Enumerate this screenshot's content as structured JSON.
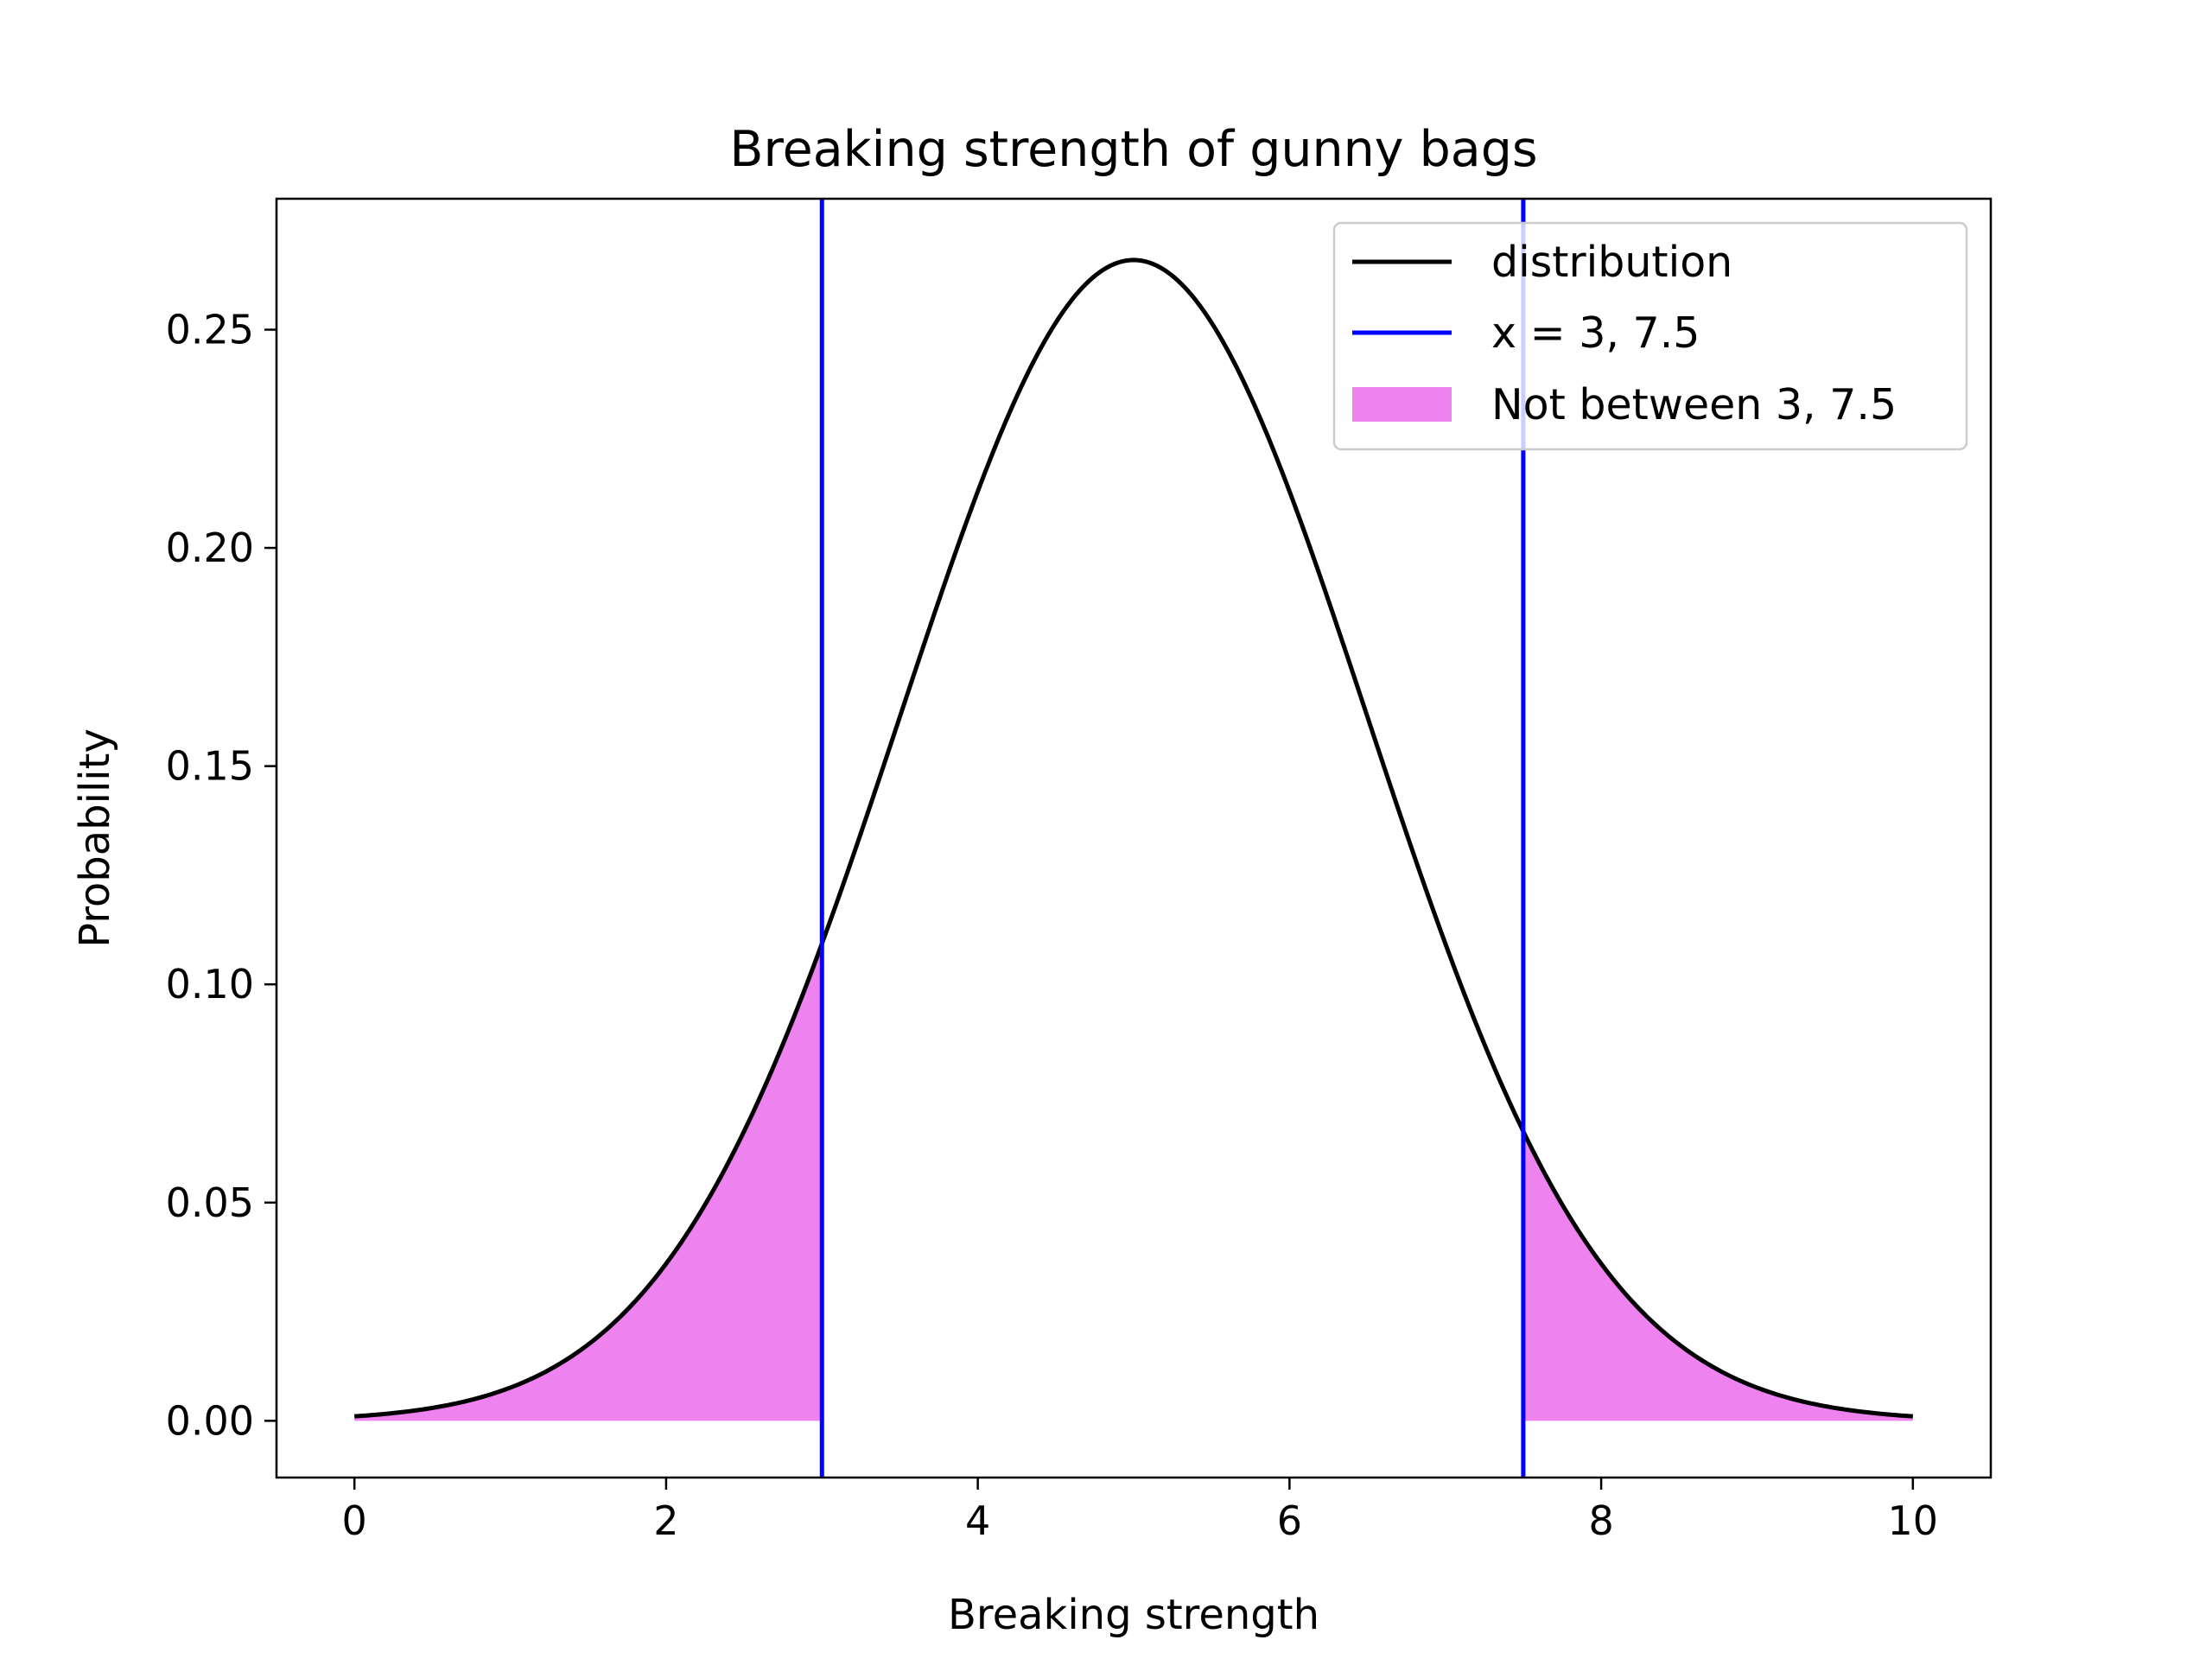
{
  "chart_data": {
    "type": "line",
    "title": "Breaking strength of gunny bags",
    "xlabel": "Breaking strength",
    "ylabel": "Probability",
    "xlim": [
      -0.5,
      10.5
    ],
    "ylim": [
      -0.013,
      0.28
    ],
    "xticks": [
      0,
      2,
      4,
      6,
      8,
      10
    ],
    "xtick_labels": [
      "0",
      "2",
      "4",
      "6",
      "8",
      "10"
    ],
    "yticks": [
      0.0,
      0.05,
      0.1,
      0.15,
      0.2,
      0.25
    ],
    "ytick_labels": [
      "0.00",
      "0.05",
      "0.10",
      "0.15",
      "0.20",
      "0.25"
    ],
    "distribution": {
      "type": "normal",
      "mean": 5,
      "std": 1.5,
      "x_range": [
        0,
        10
      ]
    },
    "series": [
      {
        "name": "distribution",
        "color": "#000000",
        "x": [
          0,
          0.5,
          1,
          1.5,
          2,
          2.5,
          3,
          3.5,
          4,
          4.5,
          5,
          5.5,
          6,
          6.5,
          7,
          7.5,
          8,
          8.5,
          9,
          9.5,
          10
        ],
        "y": [
          0.001,
          0.0029,
          0.0076,
          0.0175,
          0.036,
          0.0664,
          0.1093,
          0.1613,
          0.213,
          0.2516,
          0.266,
          0.2516,
          0.213,
          0.1613,
          0.1093,
          0.0664,
          0.036,
          0.0175,
          0.0076,
          0.0029,
          0.001
        ]
      }
    ],
    "vlines": {
      "name": "x = 3, 7.5",
      "x": [
        3,
        7.5
      ],
      "color": "#0000ff"
    },
    "fill": {
      "name": "Not between 3, 7.5",
      "color": "#ee82ee",
      "ranges": [
        [
          0,
          3
        ],
        [
          7.5,
          10
        ]
      ]
    },
    "legend": {
      "position": "top-right",
      "entries": [
        "distribution",
        "x = 3, 7.5",
        "Not between 3, 7.5"
      ]
    },
    "grid": false
  }
}
